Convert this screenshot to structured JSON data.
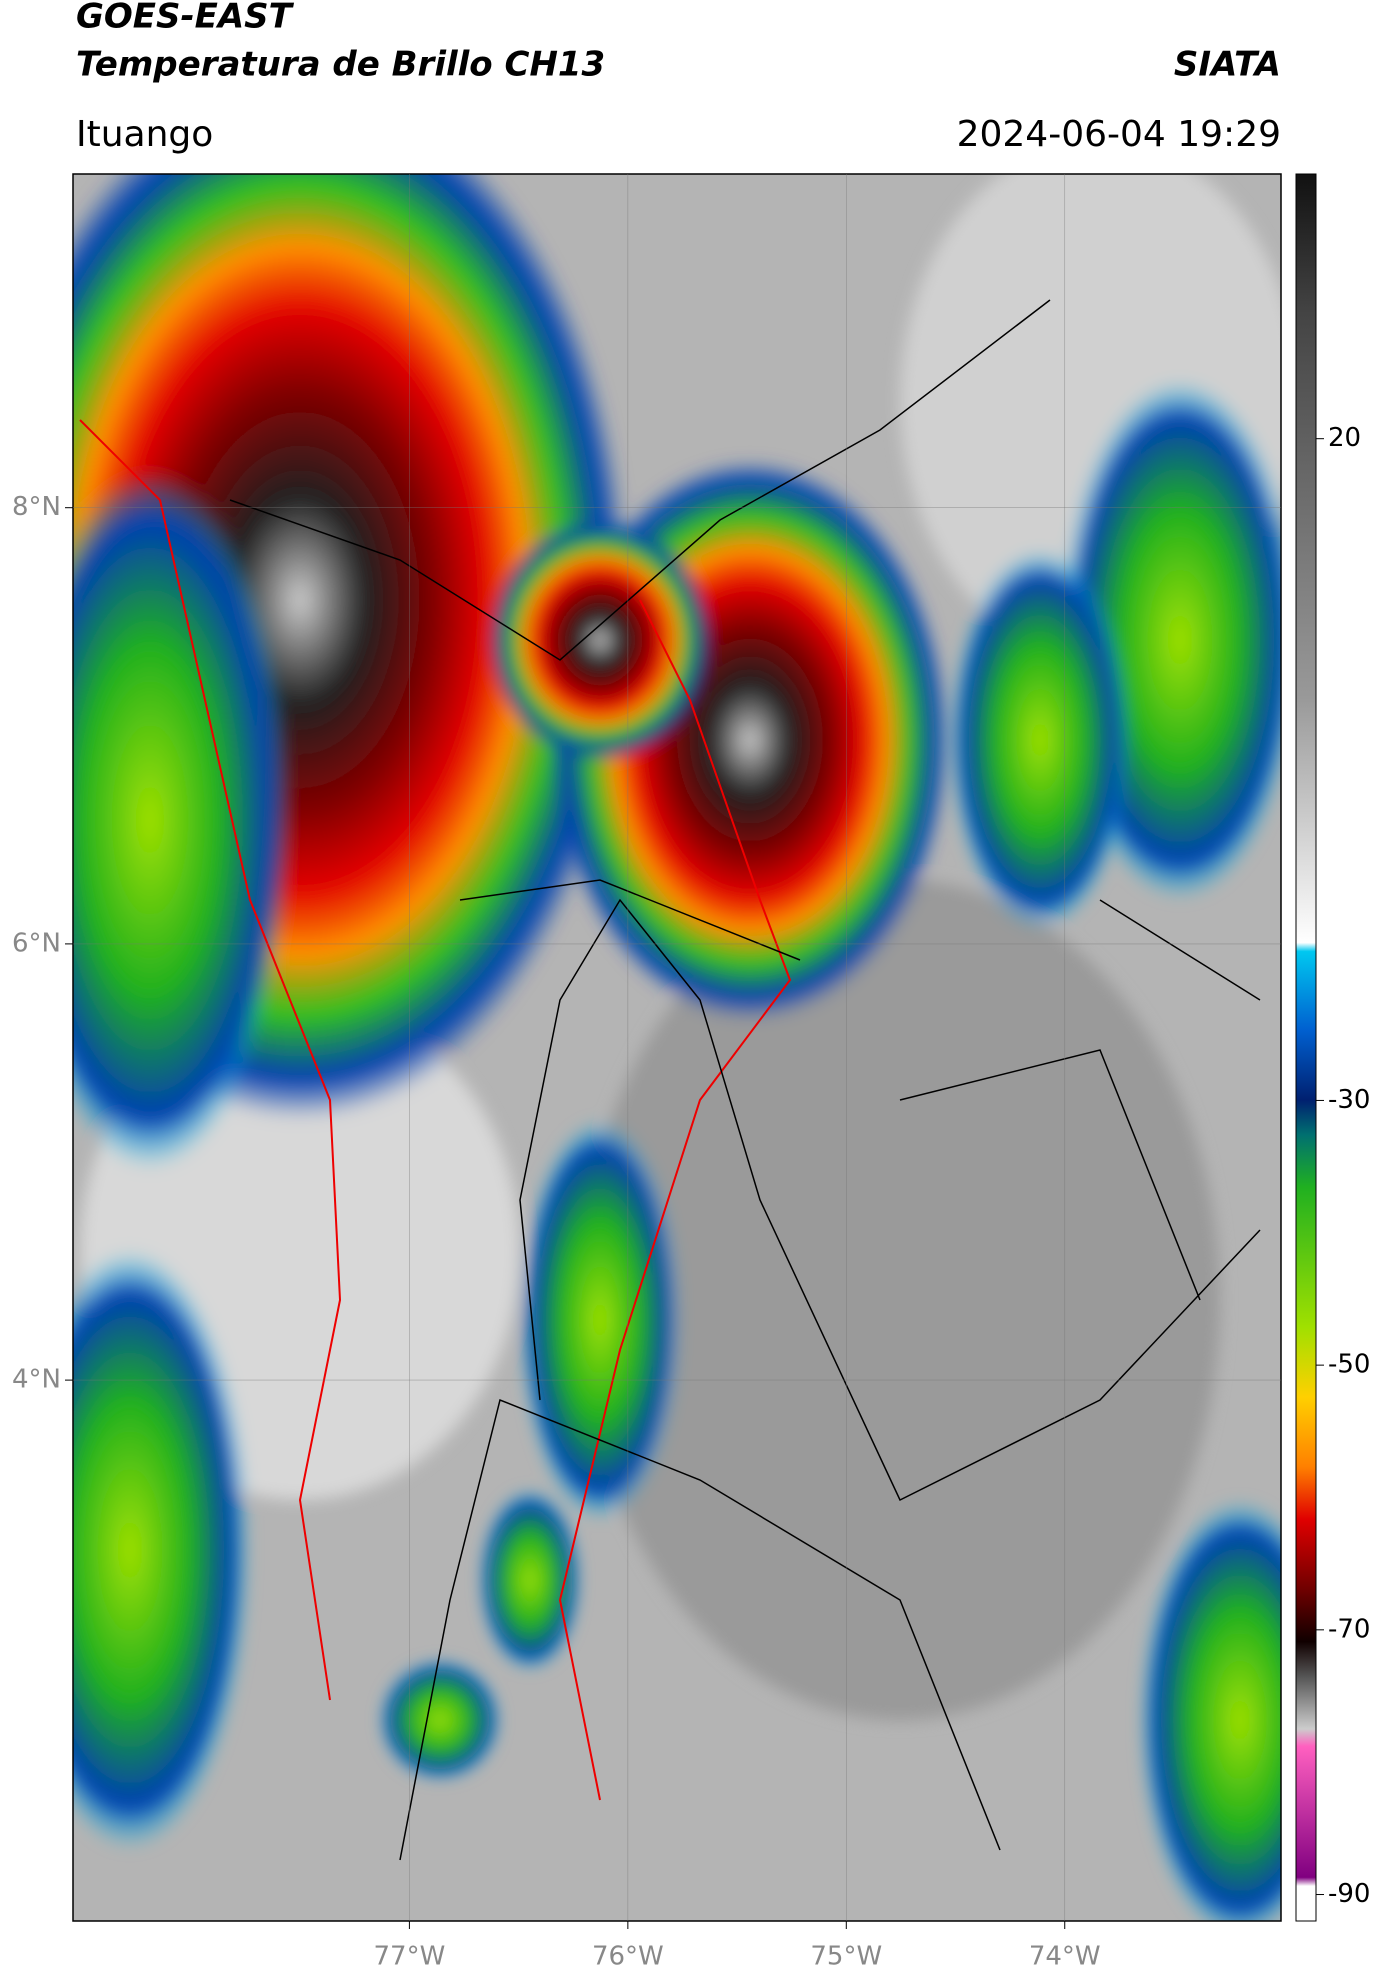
{
  "header": {
    "title": "GOES-EAST",
    "subtitle": "Temperatura de Brillo CH13",
    "source": "SIATA",
    "location": "Ituango",
    "datetime": "2024-06-04 19:29"
  },
  "map": {
    "xlim": [
      -78.54,
      -73.01
    ],
    "ylim": [
      1.52,
      9.53
    ],
    "xticks": [
      {
        "value": -77,
        "label": "77°W"
      },
      {
        "value": -76,
        "label": "76°W"
      },
      {
        "value": -75,
        "label": "75°W"
      },
      {
        "value": -74,
        "label": "74°W"
      }
    ],
    "yticks": [
      {
        "value": 8,
        "label": "8°N"
      },
      {
        "value": 6,
        "label": "6°N"
      },
      {
        "value": 4,
        "label": "4°N"
      }
    ],
    "grid": true
  },
  "colorbar": {
    "lim": [
      -92,
      40
    ],
    "ticks": [
      20,
      -30,
      -50,
      -70,
      -90
    ]
  }
}
